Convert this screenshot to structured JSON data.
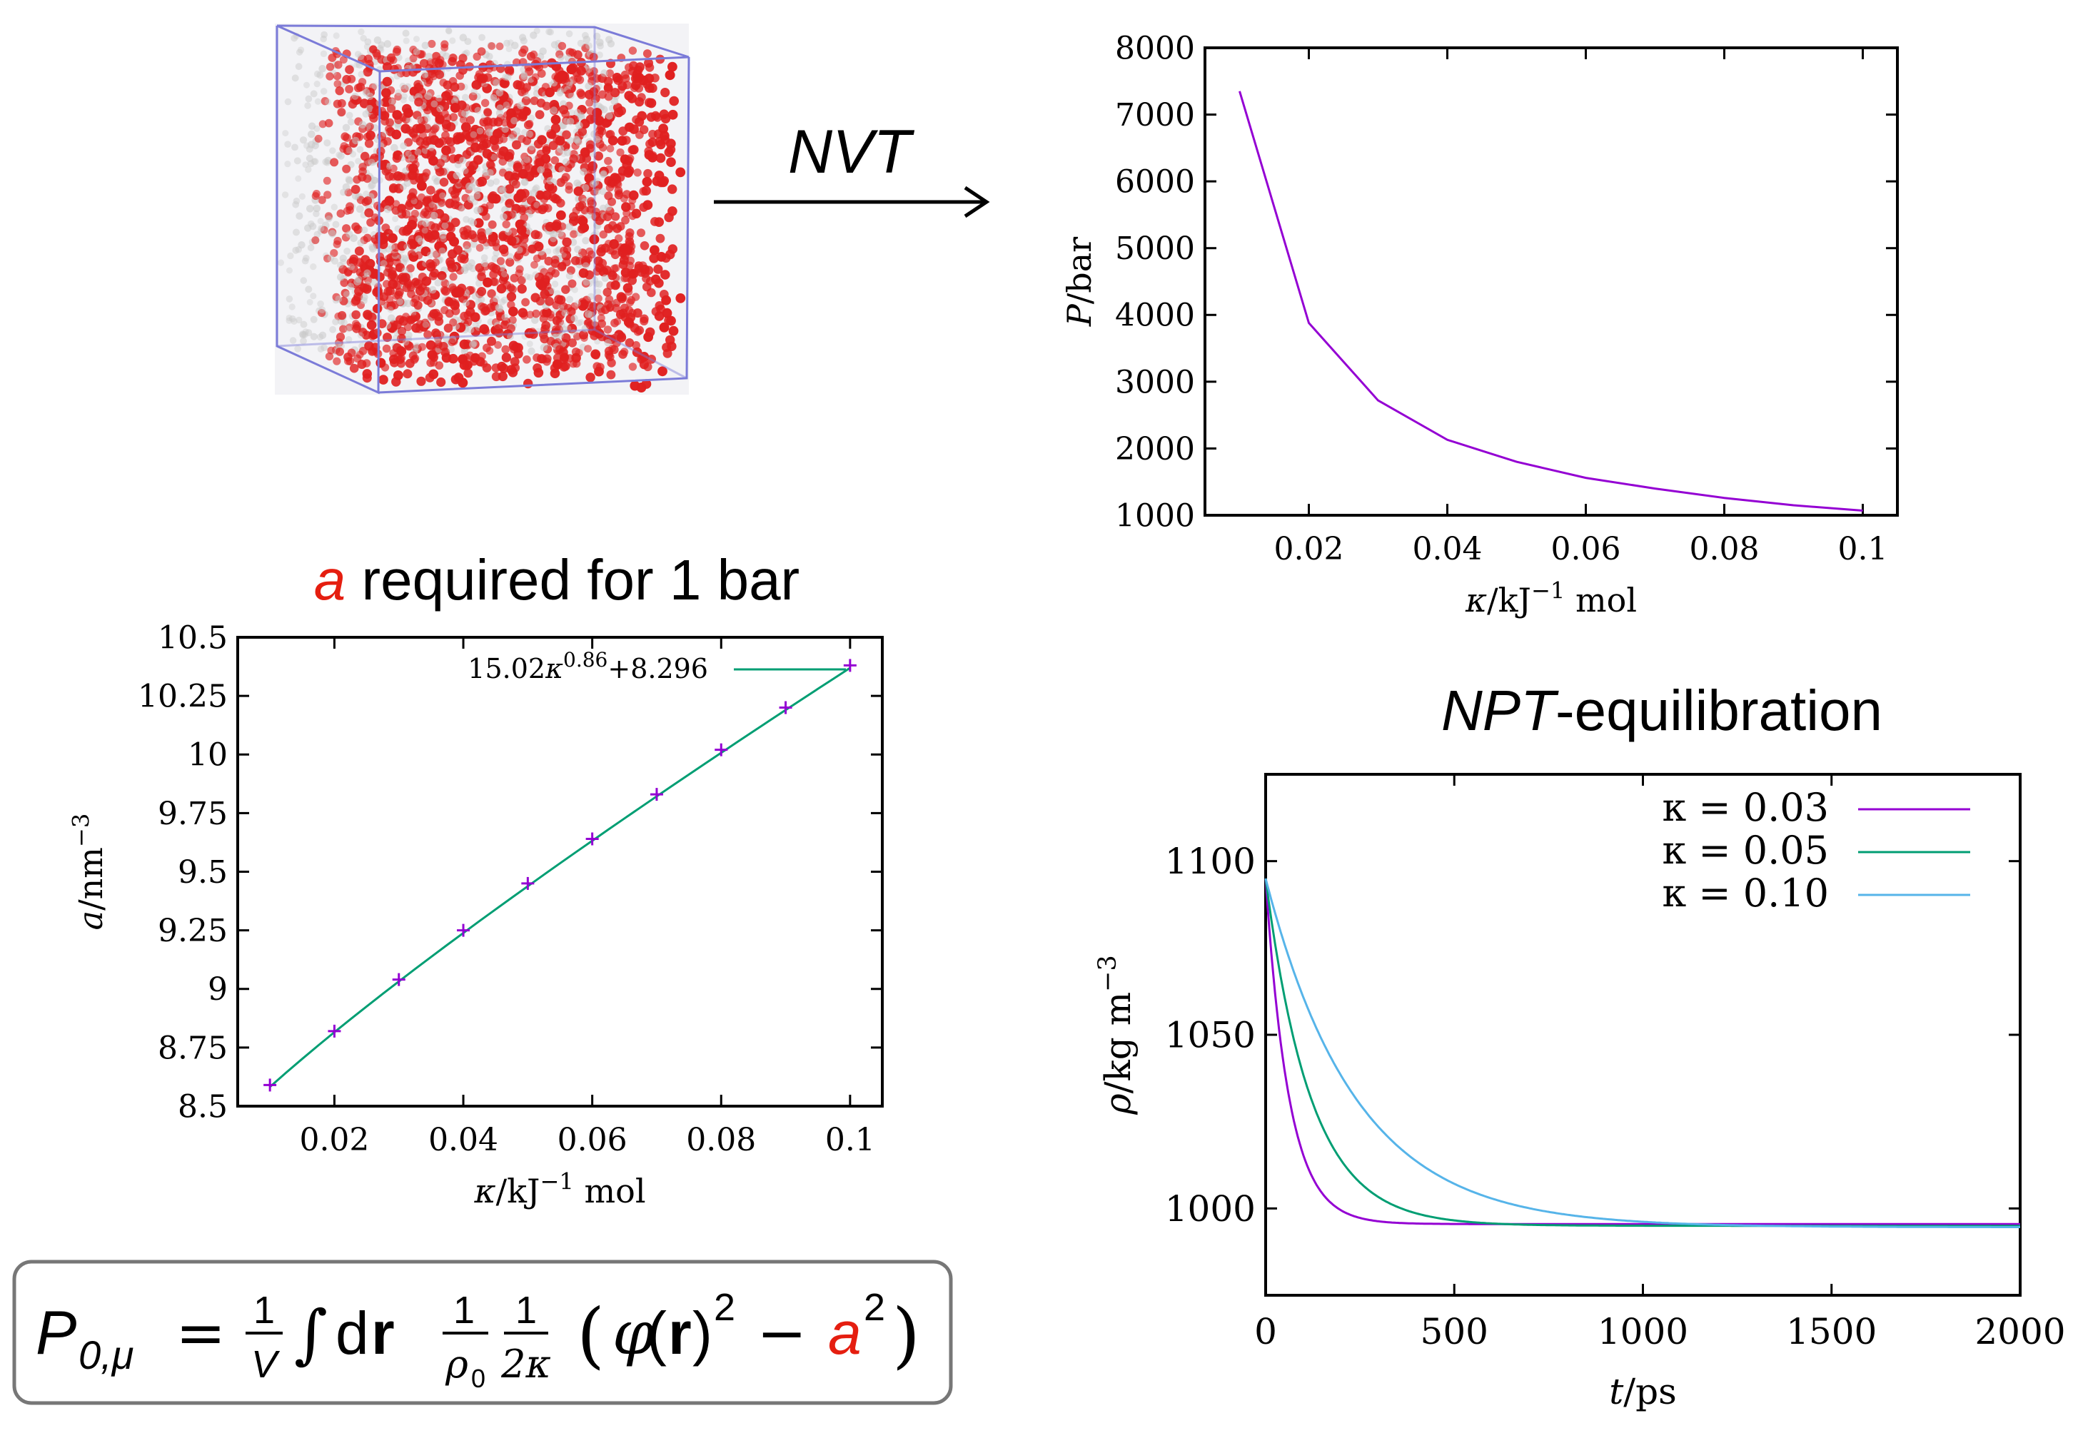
{
  "arrow_label": "NVT",
  "heading_a": {
    "red_letter": "a",
    "rest": " required for 1 bar"
  },
  "heading_npt": {
    "italic": "NPT",
    "rest": "-equilibration"
  },
  "formula": {
    "lhs_P": "P",
    "lhs_sub": "0,μ",
    "equals": "=",
    "frac1_num": "1",
    "frac1_den": "V",
    "integral": "∫",
    "d": "d",
    "r": "r",
    "frac2_num": "1",
    "frac2_den_rho": "ρ",
    "frac2_den_sub": "0",
    "frac3_num": "1",
    "frac3_den": "2κ",
    "open": "(",
    "phi": "φ",
    "phi_arg_open": "(",
    "phi_arg": "r",
    "phi_arg_close": ")",
    "sq1": "2",
    "minus": "−",
    "a": "a",
    "sq2": "2",
    "close": ")"
  },
  "colors": {
    "purple": "#9400d3",
    "green": "#009e73",
    "cyan": "#56b4e9",
    "red": "#e51e10",
    "box_edge": "#7b7bd8",
    "sphere": "#e02020",
    "axis": "#000000"
  },
  "chart_data": [
    {
      "id": "pressure",
      "type": "line",
      "title": "",
      "xlabel_sym": "κ",
      "xlabel_unit": "/kJ",
      "xlabel_sup": "−1",
      "xlabel_tail": " mol",
      "ylabel_sym": "P",
      "ylabel_unit": "/bar",
      "xlim": [
        0.005,
        0.105
      ],
      "ylim": [
        1000,
        8000
      ],
      "xticks": [
        0.02,
        0.04,
        0.06,
        0.08,
        0.1
      ],
      "xtick_labels": [
        "0.02",
        "0.04",
        "0.06",
        "0.08",
        "0.1"
      ],
      "yticks": [
        1000,
        2000,
        3000,
        4000,
        5000,
        6000,
        7000,
        8000
      ],
      "ytick_labels": [
        "1000",
        "2000",
        "3000",
        "4000",
        "5000",
        "6000",
        "7000",
        "8000"
      ],
      "grid": false,
      "series": [
        {
          "color": "#9400d3",
          "x": [
            0.01,
            0.02,
            0.03,
            0.04,
            0.05,
            0.06,
            0.07,
            0.08,
            0.09,
            0.1
          ],
          "y": [
            7350,
            3880,
            2720,
            2130,
            1800,
            1560,
            1400,
            1260,
            1150,
            1070
          ]
        }
      ]
    },
    {
      "id": "a_fit",
      "type": "scatter",
      "title": "",
      "xlabel_sym": "κ",
      "xlabel_unit": "/kJ",
      "xlabel_sup": "−1",
      "xlabel_tail": " mol",
      "ylabel_sym": "a",
      "ylabel_unit": "/nm",
      "ylabel_sup": "−3",
      "xlim": [
        0.005,
        0.105
      ],
      "ylim": [
        8.5,
        10.5
      ],
      "xticks": [
        0.02,
        0.04,
        0.06,
        0.08,
        0.1
      ],
      "xtick_labels": [
        "0.02",
        "0.04",
        "0.06",
        "0.08",
        "0.1"
      ],
      "yticks": [
        8.5,
        8.75,
        9,
        9.25,
        9.5,
        9.75,
        10,
        10.25,
        10.5
      ],
      "ytick_labels": [
        "8.5",
        "8.75",
        "9",
        "9.25",
        "9.5",
        "9.75",
        "10",
        "10.25",
        "10.5"
      ],
      "grid": false,
      "legend_position": "top-right",
      "legend_label": {
        "coef": "15.02",
        "kappa": "κ",
        "exp": "0.86",
        "tail": "+8.296"
      },
      "points": {
        "color": "#9400d3",
        "x": [
          0.01,
          0.02,
          0.03,
          0.04,
          0.05,
          0.06,
          0.07,
          0.08,
          0.09,
          0.1
        ],
        "y": [
          8.59,
          8.82,
          9.04,
          9.25,
          9.45,
          9.64,
          9.83,
          10.02,
          10.2,
          10.38
        ]
      },
      "fit": {
        "color": "#009e73",
        "coef": 15.02,
        "exp": 0.86,
        "offset": 8.296
      }
    },
    {
      "id": "npt",
      "type": "line",
      "title": "",
      "xlabel_sym": "t",
      "xlabel_unit": "/ps",
      "ylabel_sym": "ρ",
      "ylabel_unit": "/kg m",
      "ylabel_sup": "−3",
      "xlim": [
        0,
        2000
      ],
      "ylim": [
        975,
        1125
      ],
      "xticks": [
        0,
        500,
        1000,
        1500,
        2000
      ],
      "xtick_labels": [
        "0",
        "500",
        "1000",
        "1500",
        "2000"
      ],
      "yticks": [
        1000,
        1050,
        1100
      ],
      "ytick_labels": [
        "1000",
        "1050",
        "1100"
      ],
      "grid": false,
      "legend_position": "top-right",
      "series": [
        {
          "name": "κ = 0.03",
          "color": "#9400d3",
          "start": 1095,
          "final": 995.5,
          "tau": 62
        },
        {
          "name": "κ = 0.05",
          "color": "#009e73",
          "start": 1095,
          "final": 995.0,
          "tau": 120
        },
        {
          "name": "κ = 0.10",
          "color": "#56b4e9",
          "start": 1095,
          "final": 994.6,
          "tau": 240
        }
      ]
    }
  ]
}
